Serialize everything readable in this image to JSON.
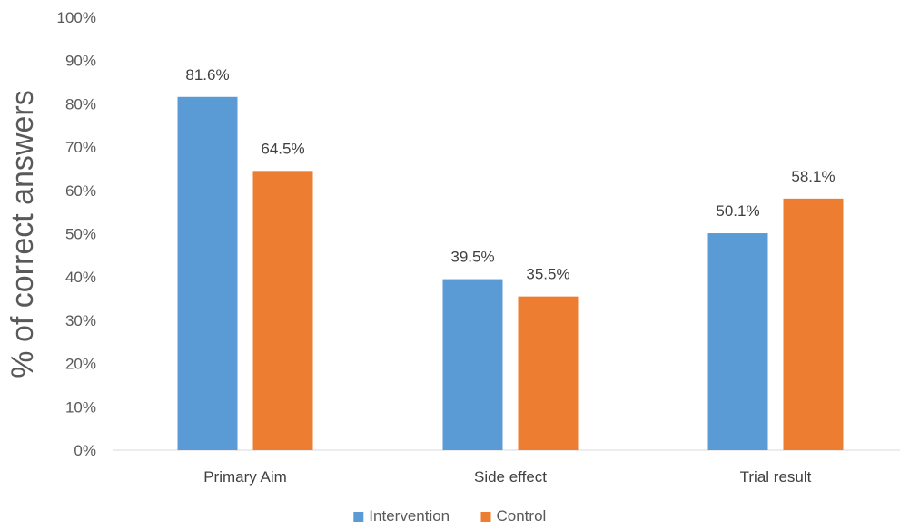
{
  "chart_data": {
    "type": "bar",
    "ylabel": "% of correct answers",
    "xlabel": "",
    "ylim": [
      0,
      100
    ],
    "yticks": [
      "0%",
      "10%",
      "20%",
      "30%",
      "40%",
      "50%",
      "60%",
      "70%",
      "80%",
      "90%",
      "100%"
    ],
    "grid": false,
    "legend_position": "bottom",
    "categories": [
      "Primary Aim",
      "Side effect",
      "Trial result"
    ],
    "series": [
      {
        "name": "Intervention",
        "color": "#5B9BD5",
        "values": [
          81.6,
          39.5,
          50.1
        ],
        "labels": [
          "81.6%",
          "39.5%",
          "50.1%"
        ]
      },
      {
        "name": "Control",
        "color": "#ED7D31",
        "values": [
          64.5,
          35.5,
          58.1
        ],
        "labels": [
          "64.5%",
          "35.5%",
          "58.1%"
        ]
      }
    ]
  }
}
